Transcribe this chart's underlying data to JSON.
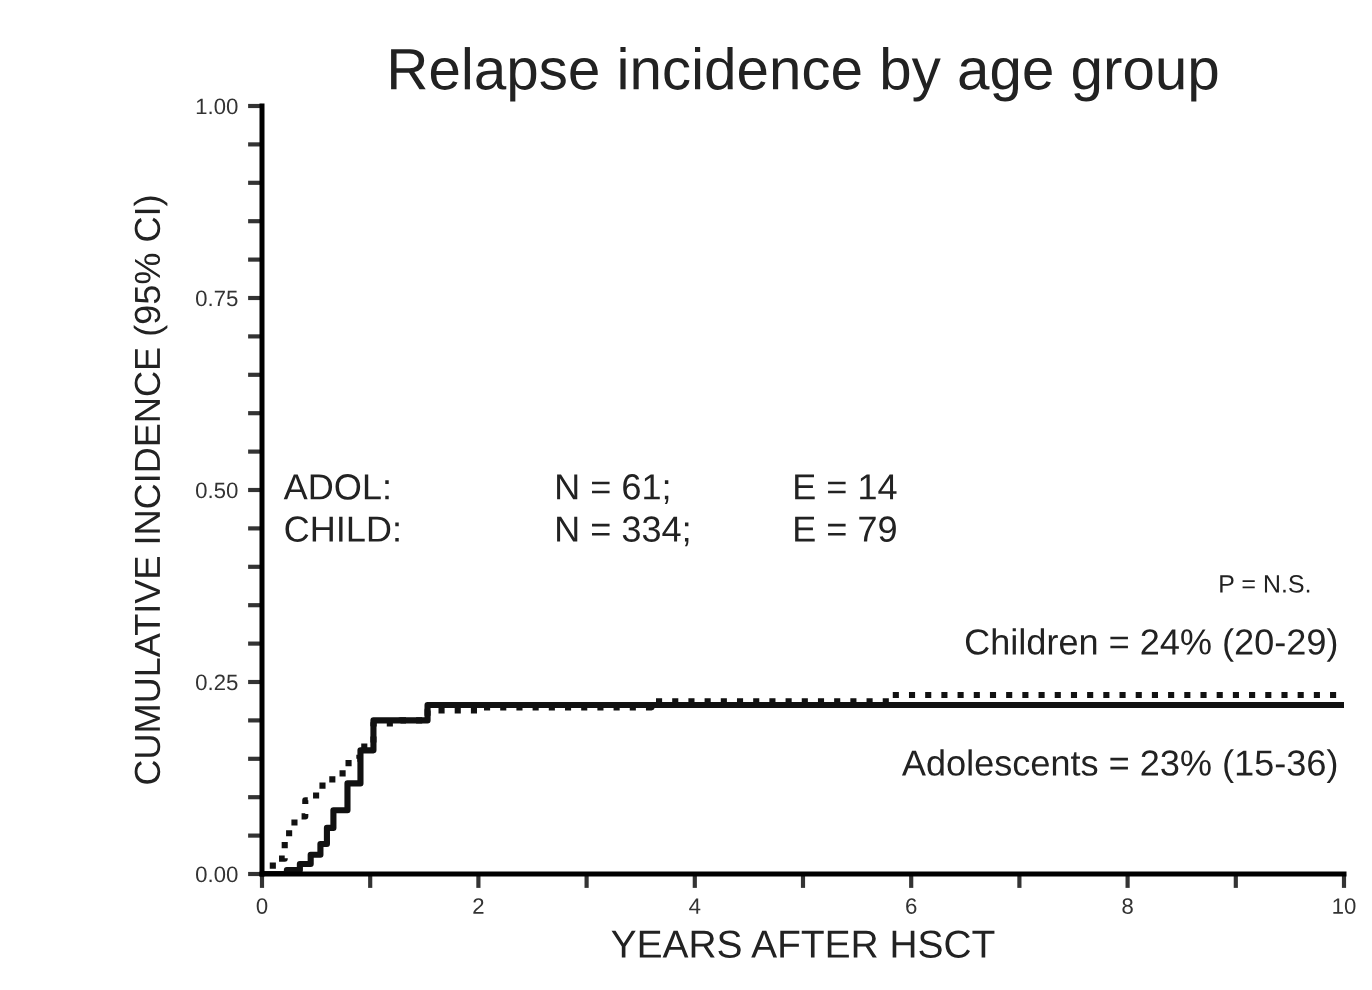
{
  "chart_data": {
    "type": "step",
    "title": "Relapse incidence by age group",
    "xlabel": "YEARS AFTER HSCT",
    "ylabel": "CUMULATIVE INCIDENCE (95% CI)",
    "series": [
      {
        "color": "#111111",
        "line_style": "dotted",
        "x": [
          0,
          0.1,
          0.21,
          0.3,
          0.4,
          0.5,
          0.65,
          0.8,
          0.9,
          1.03,
          1.28,
          1.53,
          2.04,
          3.6,
          5.8,
          10
        ],
        "values": [
          0,
          0.02,
          0.053,
          0.075,
          0.096,
          0.115,
          0.131,
          0.15,
          0.166,
          0.196,
          0.2,
          0.213,
          0.217,
          0.225,
          0.233,
          0.233
        ]
      },
      {
        "color": "#111111",
        "line_style": "solid",
        "x": [
          0,
          0.23,
          0.35,
          0.45,
          0.54,
          0.6,
          0.66,
          0.79,
          0.91,
          1.03,
          1.47,
          1.53,
          10
        ],
        "values": [
          0,
          0.005,
          0.013,
          0.025,
          0.039,
          0.06,
          0.083,
          0.118,
          0.161,
          0.2,
          0.2,
          0.22,
          0.22
        ]
      }
    ],
    "xlim": [
      0,
      10
    ],
    "ylim": [
      0,
      1
    ],
    "xticks": [
      0,
      {
        "value": 1,
        "label": null
      },
      2,
      {
        "value": 3,
        "label": null
      },
      4,
      {
        "value": 5,
        "label": null
      },
      6,
      {
        "value": 7,
        "label": null
      },
      8,
      {
        "value": 9,
        "label": null
      },
      10
    ],
    "yticks": [
      {
        "value": 0,
        "label": "0.00"
      },
      {
        "value": 0.05,
        "label": null
      },
      {
        "value": 0.1,
        "label": null
      },
      {
        "value": 0.15,
        "label": null
      },
      {
        "value": 0.2,
        "label": null
      },
      0.25,
      {
        "value": 0.3,
        "label": null
      },
      {
        "value": 0.35,
        "label": null
      },
      {
        "value": 0.4,
        "label": null
      },
      {
        "value": 0.45,
        "label": null
      },
      {
        "value": 0.5,
        "label": "0.50"
      },
      {
        "value": 0.55,
        "label": null
      },
      {
        "value": 0.6,
        "label": null
      },
      {
        "value": 0.65,
        "label": null
      },
      {
        "value": 0.7,
        "label": null
      },
      0.75,
      {
        "value": 0.8,
        "label": null
      },
      {
        "value": 0.85,
        "label": null
      },
      {
        "value": 0.9,
        "label": null
      },
      {
        "value": 0.95,
        "label": null
      },
      {
        "value": 1,
        "label": "1.00"
      }
    ],
    "grid": false,
    "legend": false,
    "annotations": [
      "ADOL:",
      "N = 61;",
      "E = 14",
      "CHILD:",
      "N = 334;",
      "E = 79",
      "P = N.S.",
      {
        "text": "Children = 24% (20-29)",
        "x": 10,
        "y": 0.233
      },
      {
        "text": "Adolescents = 23% (15-36)",
        "x": 10,
        "y": 0.22
      }
    ]
  }
}
